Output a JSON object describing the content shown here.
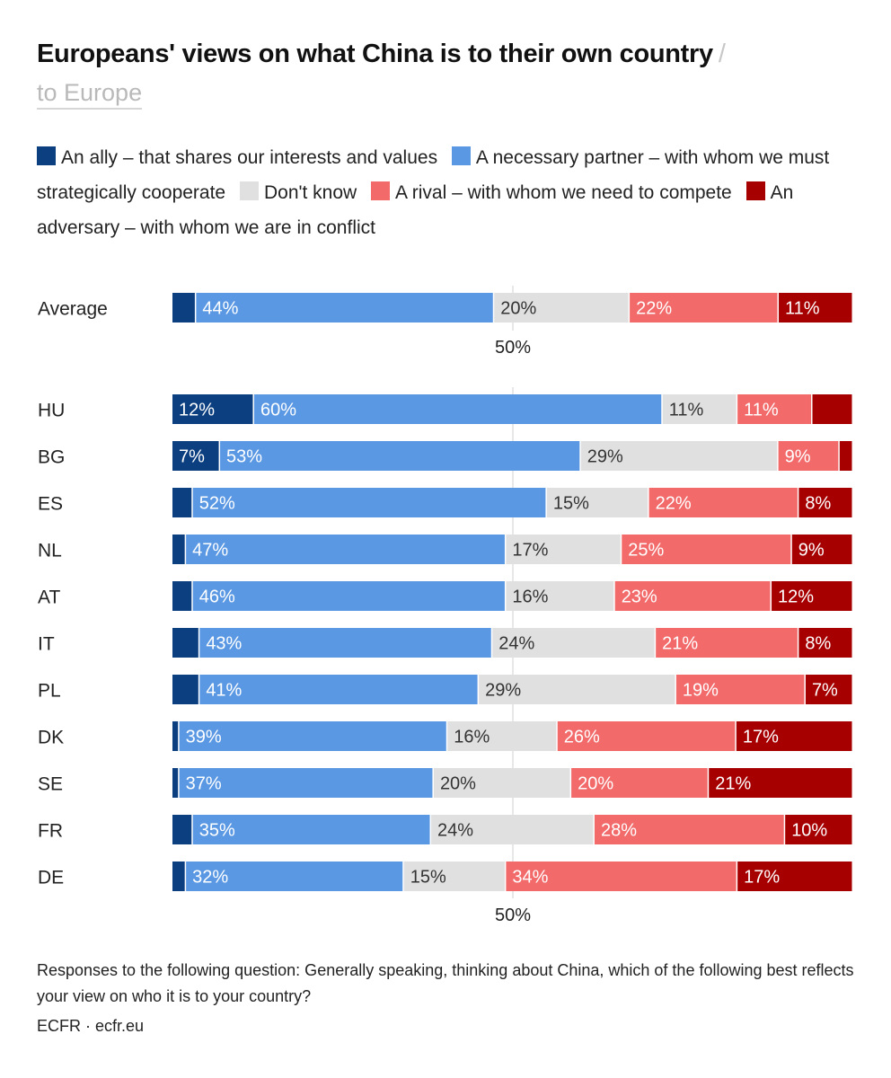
{
  "header": {
    "title": "Europeans' views on what China is to their own country",
    "title_separator": "/",
    "alt_view_label": "to Europe"
  },
  "colors": {
    "ally": "#0b3f80",
    "partner": "#5a98e3",
    "dontknow": "#e0e0e0",
    "rival": "#f26a6a",
    "adversary": "#a70000",
    "gridline": "#d0d0d0"
  },
  "legend": [
    {
      "key": "ally",
      "label": "An ally – that shares our interests and values"
    },
    {
      "key": "partner",
      "label": "A necessary partner – with whom we must strategically cooperate"
    },
    {
      "key": "dontknow",
      "label": "Don't know"
    },
    {
      "key": "rival",
      "label": "A rival – with whom we need to compete"
    },
    {
      "key": "adversary",
      "label": "An adversary – with whom we are in conflict"
    }
  ],
  "chart_data": {
    "type": "bar",
    "orientation": "horizontal",
    "stacked": true,
    "xlim": [
      0,
      100
    ],
    "reference_line": {
      "value": 50,
      "label": "50%"
    },
    "categories": [
      "Average",
      "HU",
      "BG",
      "ES",
      "NL",
      "AT",
      "IT",
      "PL",
      "DK",
      "SE",
      "FR",
      "DE"
    ],
    "series": [
      {
        "name": "An ally – that shares our interests and values",
        "key": "ally",
        "values": [
          3.5,
          12,
          7,
          3,
          2,
          3,
          4,
          4,
          1,
          1,
          3,
          2
        ],
        "labels": [
          "",
          "12%",
          "7%",
          "",
          "",
          "",
          "",
          "",
          "",
          "",
          "",
          ""
        ]
      },
      {
        "name": "A necessary partner – with whom we must strategically cooperate",
        "key": "partner",
        "values": [
          44,
          60,
          53,
          52,
          47,
          46,
          43,
          41,
          39,
          37,
          35,
          32
        ],
        "labels": [
          "44%",
          "60%",
          "53%",
          "52%",
          "47%",
          "46%",
          "43%",
          "41%",
          "39%",
          "37%",
          "35%",
          "32%"
        ]
      },
      {
        "name": "Don't know",
        "key": "dontknow",
        "values": [
          20,
          11,
          29,
          15,
          17,
          16,
          24,
          29,
          16,
          20,
          24,
          15
        ],
        "labels": [
          "20%",
          "11%",
          "29%",
          "15%",
          "17%",
          "16%",
          "24%",
          "29%",
          "16%",
          "20%",
          "24%",
          "15%"
        ]
      },
      {
        "name": "A rival – with whom we need to compete",
        "key": "rival",
        "values": [
          22,
          11,
          9,
          22,
          25,
          23,
          21,
          19,
          26,
          20,
          28,
          34
        ],
        "labels": [
          "22%",
          "11%",
          "9%",
          "22%",
          "25%",
          "23%",
          "21%",
          "19%",
          "26%",
          "20%",
          "28%",
          "34%"
        ]
      },
      {
        "name": "An adversary – with whom we are in conflict",
        "key": "adversary",
        "values": [
          11,
          6,
          2,
          8,
          9,
          12,
          8,
          7,
          17,
          21,
          10,
          17
        ],
        "labels": [
          "11%",
          "",
          "",
          "8%",
          "9%",
          "12%",
          "8%",
          "7%",
          "17%",
          "21%",
          "10%",
          "17%"
        ]
      }
    ]
  },
  "footer": {
    "note": "Responses to the following question: Generally speaking, thinking about China, which of the following best reflects your view on who it is to your country?",
    "source": "ECFR · ecfr.eu"
  }
}
